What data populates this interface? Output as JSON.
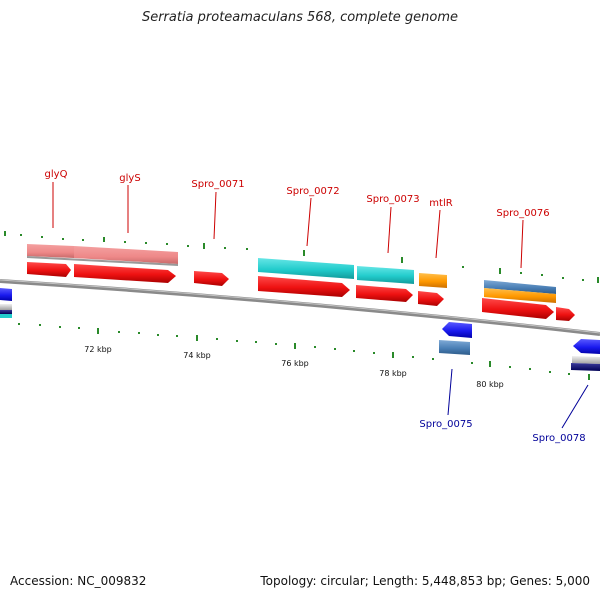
{
  "title": "Serratia proteamaculans 568, complete genome",
  "footer": {
    "accession": "Accession: NC_009832",
    "topology": "Topology: circular; Length: 5,448,853 bp; Genes: 5,000"
  },
  "scale_labels": [
    "72 kbp",
    "74 kbp",
    "76 kbp",
    "78 kbp",
    "80 kbp"
  ],
  "gene_labels_top": [
    "glyQ",
    "glyS",
    "Spro_0071",
    "Spro_0072",
    "Spro_0073",
    "mtlR",
    "Spro_0076"
  ],
  "gene_labels_bottom": [
    "Spro_0075",
    "Spro_0078"
  ],
  "colors": {
    "cds": "#ee1111",
    "gene_pink": "#f08888",
    "gene_cyan": "#22cccc",
    "gene_orange": "#ff9900",
    "gene_steel": "#4a7fb5",
    "reverse_blue": "#1a1aee",
    "tick": "#2a8a2a",
    "backbone": "#888888",
    "label_top": "#cc0000",
    "label_bottom": "#000099"
  }
}
